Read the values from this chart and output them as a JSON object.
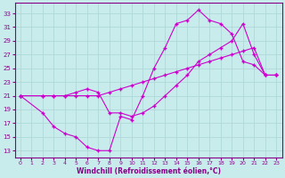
{
  "xlabel": "Windchill (Refroidissement éolien,°C)",
  "bg_color": "#c8ecec",
  "line_color": "#cc00cc",
  "grid_color": "#b0d8d8",
  "axis_color": "#880088",
  "xlim": [
    -0.5,
    23.5
  ],
  "ylim": [
    12,
    34.5
  ],
  "xticks": [
    0,
    1,
    2,
    3,
    4,
    5,
    6,
    7,
    8,
    9,
    10,
    11,
    12,
    13,
    14,
    15,
    16,
    17,
    18,
    19,
    20,
    21,
    22,
    23
  ],
  "yticks": [
    13,
    15,
    17,
    19,
    21,
    23,
    25,
    27,
    29,
    31,
    33
  ],
  "line1_x": [
    0,
    2,
    3,
    4,
    5,
    6,
    7,
    8,
    9,
    10,
    11,
    12,
    13,
    14,
    15,
    16,
    17,
    18,
    19,
    20,
    21,
    22,
    23
  ],
  "line1_y": [
    21,
    21,
    21,
    21,
    21,
    21,
    21,
    21.5,
    22,
    22.5,
    23,
    23.5,
    24,
    24.5,
    25,
    25.5,
    26,
    26.5,
    27,
    27.5,
    28,
    24,
    24
  ],
  "line2_x": [
    0,
    2,
    3,
    4,
    5,
    6,
    7,
    8,
    9,
    10,
    11,
    12,
    13,
    14,
    15,
    16,
    17,
    18,
    19,
    20,
    21,
    22,
    23
  ],
  "line2_y": [
    21,
    18.5,
    16.5,
    15.5,
    15,
    13.5,
    13,
    13,
    18,
    17.5,
    21,
    25,
    28,
    31.5,
    32,
    33.5,
    32,
    31.5,
    30,
    26,
    25.5,
    24,
    24
  ],
  "line3_x": [
    0,
    2,
    3,
    4,
    5,
    6,
    7,
    8,
    9,
    10,
    11,
    12,
    13,
    14,
    15,
    16,
    17,
    18,
    19,
    20,
    21,
    22,
    23
  ],
  "line3_y": [
    21,
    21,
    21,
    21,
    21.5,
    22,
    21.5,
    18.5,
    18.5,
    18,
    18.5,
    19.5,
    21,
    22.5,
    24,
    26,
    27,
    28,
    29,
    31.5,
    27,
    24,
    24
  ]
}
